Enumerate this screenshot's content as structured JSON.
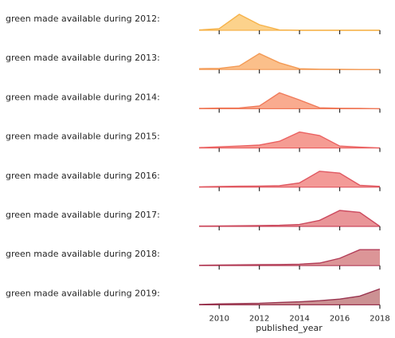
{
  "chart_data": {
    "type": "area",
    "subtype": "ridgeline",
    "xlabel": "published_year",
    "x": [
      2009,
      2010,
      2011,
      2012,
      2013,
      2014,
      2015,
      2016,
      2017,
      2018
    ],
    "xlim": [
      2009,
      2018
    ],
    "xticks": [
      2010,
      2012,
      2014,
      2016,
      2018
    ],
    "grid": false,
    "legend": "none",
    "series": [
      {
        "name": "green made available during 2012:",
        "color": "#f6b34b",
        "fill": "#fcd28c",
        "values": [
          0.02,
          0.1,
          1.0,
          0.35,
          0.02,
          0.0,
          0.0,
          0.0,
          0.0,
          0.0
        ]
      },
      {
        "name": "green made available during 2013:",
        "color": "#f39a55",
        "fill": "#fbbf8a",
        "values": [
          0.05,
          0.07,
          0.22,
          1.0,
          0.42,
          0.05,
          0.02,
          0.01,
          0.0,
          0.0
        ]
      },
      {
        "name": "green made available during 2014:",
        "color": "#f07a5a",
        "fill": "#f9ab8f",
        "values": [
          0.02,
          0.04,
          0.05,
          0.17,
          1.0,
          0.55,
          0.06,
          0.03,
          0.02,
          0.0
        ]
      },
      {
        "name": "green made available during 2015:",
        "color": "#eb6262",
        "fill": "#f59c93",
        "values": [
          0.02,
          0.07,
          0.12,
          0.18,
          0.42,
          1.0,
          0.78,
          0.12,
          0.05,
          0.0
        ]
      },
      {
        "name": "green made available during 2016:",
        "color": "#e05861",
        "fill": "#f39a97",
        "values": [
          0.02,
          0.04,
          0.06,
          0.07,
          0.09,
          0.27,
          1.0,
          0.88,
          0.12,
          0.05
        ]
      },
      {
        "name": "green made available during 2017:",
        "color": "#cc4a5e",
        "fill": "#e99598",
        "values": [
          0.02,
          0.03,
          0.04,
          0.05,
          0.07,
          0.12,
          0.38,
          1.0,
          0.88,
          0.0
        ]
      },
      {
        "name": "green made available during 2018:",
        "color": "#b33e58",
        "fill": "#dc9597",
        "values": [
          0.02,
          0.04,
          0.05,
          0.06,
          0.07,
          0.09,
          0.16,
          0.46,
          1.0,
          1.0
        ]
      },
      {
        "name": "green made available during 2019:",
        "color": "#99344f",
        "fill": "#cc9193",
        "values": [
          0.02,
          0.06,
          0.08,
          0.1,
          0.15,
          0.19,
          0.26,
          0.36,
          0.55,
          1.0
        ]
      }
    ]
  }
}
